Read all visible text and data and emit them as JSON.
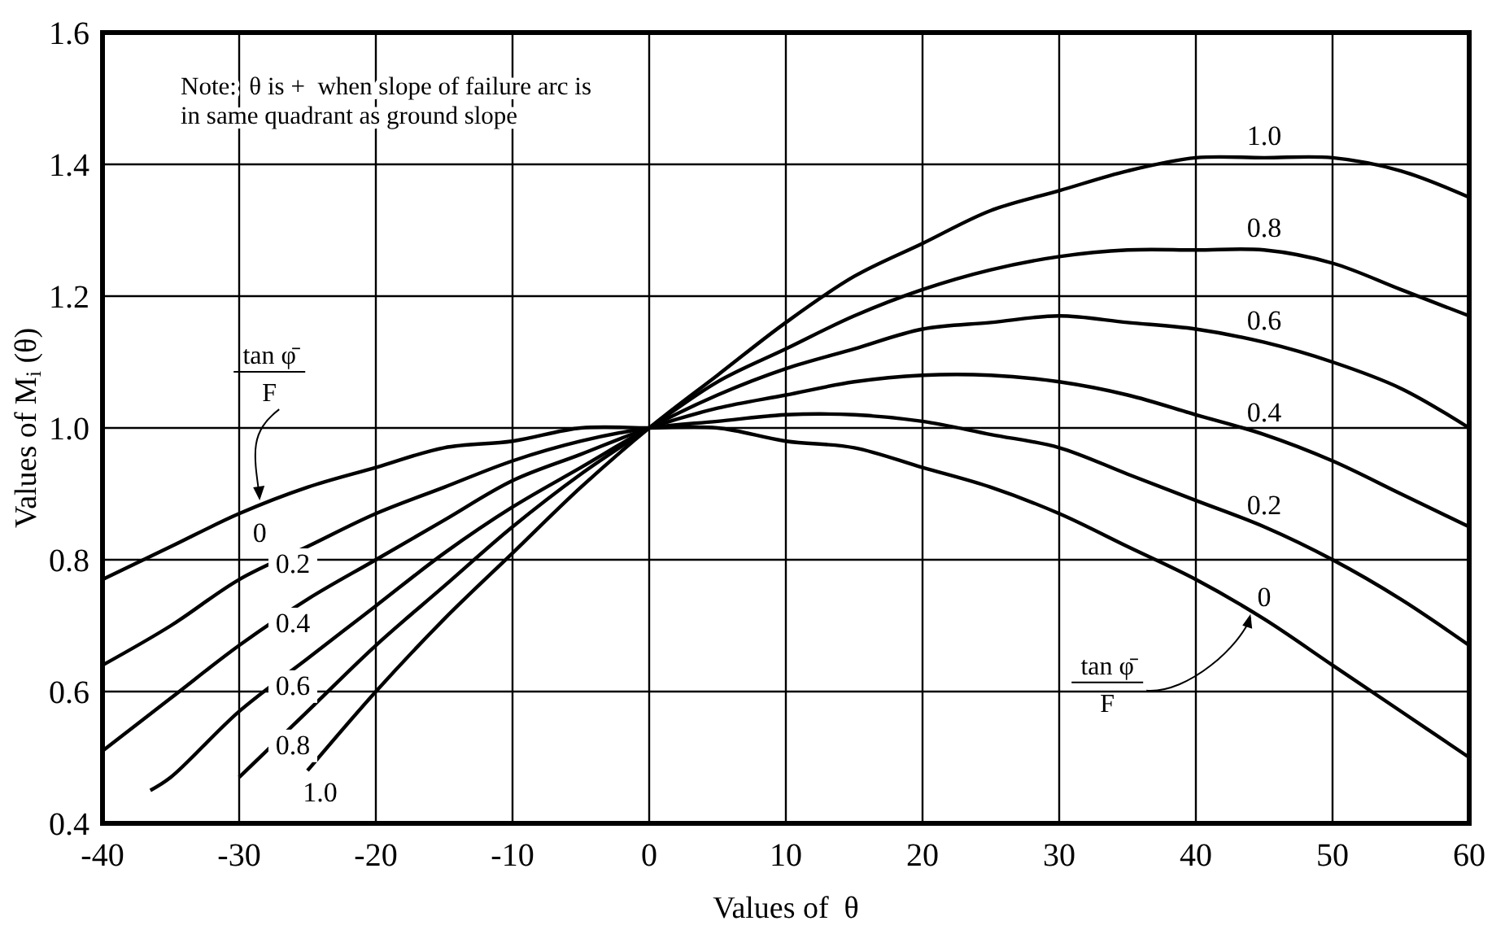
{
  "chart_data": {
    "type": "line",
    "xlabel": "Values of  θ",
    "ylabel": "Values of M$_{i}$ (θ)",
    "xlim": [
      -40,
      60
    ],
    "ylim": [
      0.4,
      1.6
    ],
    "xticks": [
      -40,
      -30,
      -20,
      -10,
      0,
      10,
      20,
      30,
      40,
      50,
      60
    ],
    "yticks": [
      0.4,
      0.6,
      0.8,
      {
        "value": 1,
        "label": "1.0"
      },
      1.2,
      1.4,
      1.6
    ],
    "grid": true,
    "marker": "none",
    "line_style": "solid",
    "series": [
      {
        "name": "0",
        "color": "#000000",
        "x": [
          -40,
          -35,
          -30,
          -25,
          -20,
          -15,
          -10,
          -5,
          0,
          5,
          10,
          15,
          20,
          25,
          30,
          35,
          40,
          45,
          50,
          55,
          60
        ],
        "values": [
          0.77,
          0.82,
          0.87,
          0.91,
          0.94,
          0.97,
          0.98,
          1.0,
          1.0,
          1.0,
          0.98,
          0.97,
          0.94,
          0.91,
          0.87,
          0.82,
          0.77,
          0.71,
          0.64,
          0.57,
          0.5
        ]
      },
      {
        "name": "0.2",
        "color": "#000000",
        "x": [
          -40,
          -35,
          -30,
          -25,
          -20,
          -15,
          -10,
          -5,
          0,
          5,
          10,
          15,
          20,
          25,
          30,
          35,
          40,
          45,
          50,
          55,
          60
        ],
        "values": [
          0.64,
          0.7,
          0.77,
          0.82,
          0.87,
          0.91,
          0.95,
          0.98,
          1.0,
          1.01,
          1.02,
          1.02,
          1.01,
          0.99,
          0.97,
          0.93,
          0.89,
          0.85,
          0.8,
          0.74,
          0.67
        ]
      },
      {
        "name": "0.4",
        "color": "#000000",
        "x": [
          -40,
          -35,
          -30,
          -25,
          -20,
          -15,
          -10,
          -5,
          0,
          5,
          10,
          15,
          20,
          25,
          30,
          35,
          40,
          45,
          50,
          55,
          60
        ],
        "values": [
          0.51,
          0.59,
          0.67,
          0.74,
          0.8,
          0.86,
          0.92,
          0.96,
          1.0,
          1.03,
          1.05,
          1.07,
          1.08,
          1.08,
          1.07,
          1.05,
          1.02,
          0.99,
          0.95,
          0.9,
          0.85
        ]
      },
      {
        "name": "0.6",
        "color": "#000000",
        "x": [
          -36.5,
          -35,
          -30,
          -25,
          -20,
          -15,
          -10,
          -5,
          0,
          5,
          10,
          15,
          20,
          25,
          30,
          35,
          40,
          45,
          50,
          55,
          60
        ],
        "values": [
          0.45,
          0.47,
          0.57,
          0.65,
          0.73,
          0.81,
          0.88,
          0.94,
          1.0,
          1.05,
          1.09,
          1.12,
          1.15,
          1.16,
          1.17,
          1.16,
          1.15,
          1.13,
          1.1,
          1.06,
          1.0
        ]
      },
      {
        "name": "0.8",
        "color": "#000000",
        "x": [
          -30,
          -25,
          -20,
          -15,
          -10,
          -5,
          0,
          5,
          10,
          15,
          20,
          25,
          30,
          35,
          40,
          45,
          50,
          55,
          60
        ],
        "values": [
          0.47,
          0.57,
          0.67,
          0.76,
          0.85,
          0.93,
          1.0,
          1.07,
          1.12,
          1.17,
          1.21,
          1.24,
          1.26,
          1.27,
          1.27,
          1.27,
          1.25,
          1.21,
          1.17
        ]
      },
      {
        "name": "1.0",
        "color": "#000000",
        "x": [
          -25,
          -20,
          -15,
          -10,
          -5,
          0,
          5,
          10,
          15,
          20,
          25,
          30,
          35,
          40,
          45,
          50,
          55,
          60
        ],
        "values": [
          0.48,
          0.6,
          0.71,
          0.81,
          0.91,
          1.0,
          1.08,
          1.16,
          1.23,
          1.28,
          1.33,
          1.36,
          1.39,
          1.41,
          1.41,
          1.41,
          1.39,
          1.35
        ]
      }
    ],
    "annotations": [
      "Note:  θ is +  when slope of failure arc is\nin same quadrant as ground slope",
      {
        "text": "tan φ̄\nF",
        "x": -28.5,
        "y": 0.89
      },
      {
        "text": "tan φ̄\nF",
        "x": 44,
        "y": 0.72
      }
    ]
  }
}
